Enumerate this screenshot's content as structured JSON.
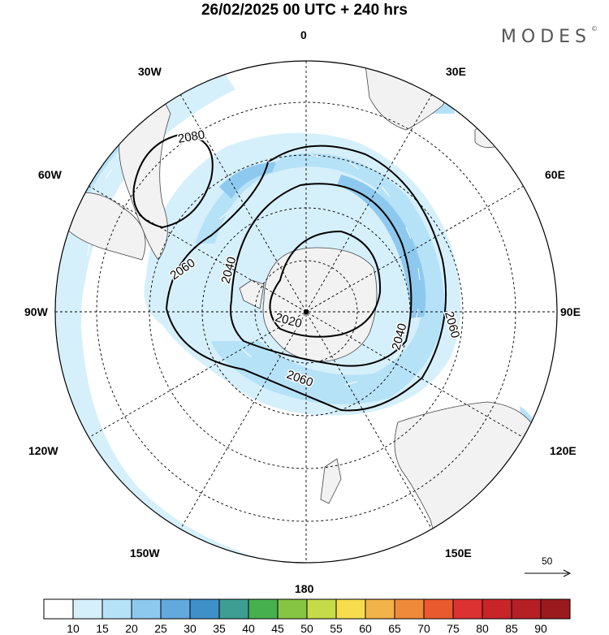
{
  "title": "26/02/2025  00 UTC  + 240 hrs",
  "brand": "MODES",
  "brand_mark": "©",
  "longitudes": {
    "top": "0",
    "bottom": "180",
    "left": "90W",
    "right": "90E",
    "w30": "30W",
    "w60": "60W",
    "w120": "120W",
    "w150": "150W",
    "e30": "30E",
    "e60": "60E",
    "e120": "120E",
    "e150": "150E"
  },
  "contours": {
    "c2020": "2020",
    "c2040a": "2040",
    "c2040b": "2040",
    "c2060a": "2060",
    "c2060b": "2060",
    "c2060c": "2060",
    "c2080": "2080"
  },
  "vector_scale": "50",
  "legend": {
    "colors": [
      "#ffffff",
      "#d6f0fb",
      "#b6e2f8",
      "#8dc9ef",
      "#62a9de",
      "#3f8fc9",
      "#3e9e94",
      "#46b04d",
      "#86c443",
      "#c5db48",
      "#f6dd4d",
      "#f2b34a",
      "#ef8a3a",
      "#ea5a2f",
      "#dc3232",
      "#c8252b",
      "#b51f26",
      "#9a1a1e"
    ],
    "labels": [
      "10",
      "15",
      "20",
      "25",
      "30",
      "35",
      "40",
      "45",
      "50",
      "55",
      "60",
      "65",
      "70",
      "75",
      "80",
      "85",
      "90"
    ]
  }
}
